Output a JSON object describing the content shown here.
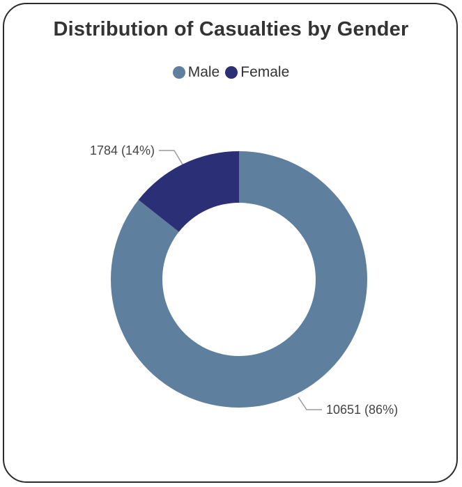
{
  "chart_data": {
    "type": "pie",
    "title": "Distribution of Casualties by Gender",
    "legend_position": "top",
    "categories": [
      "Male",
      "Female"
    ],
    "values": [
      10651,
      1784
    ],
    "percent_labels": [
      "86%",
      "14%"
    ],
    "data_labels": [
      "10651 (86%)",
      "1784 (14%)"
    ],
    "colors": [
      "#5f7f9f",
      "#2b2f75"
    ],
    "donut": true
  }
}
